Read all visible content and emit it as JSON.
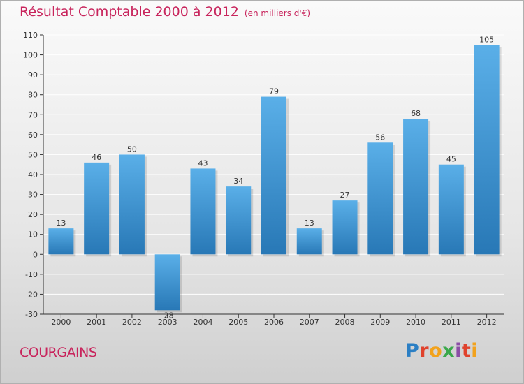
{
  "title": "Résultat Comptable 2000 à 2012",
  "subtitle": "(en milliers d'€)",
  "place": "COURGAINS",
  "brand": {
    "letters": [
      "P",
      "r",
      "o",
      "x",
      "i",
      "t",
      "i"
    ],
    "colors": [
      "#2b7fc4",
      "#e0422c",
      "#f2a21c",
      "#3aa84a",
      "#8b4ea6",
      "#e0422c",
      "#f2a21c"
    ]
  },
  "colors": {
    "bar_top": "#5aafe8",
    "bar_bottom": "#2878b6",
    "grid": "#ffffff",
    "axis": "#333333",
    "title": "#c8245c"
  },
  "chart_data": {
    "type": "bar",
    "title": "Résultat Comptable 2000 à 2012",
    "ylabel": "en milliers d'€",
    "categories": [
      "2000",
      "2001",
      "2002",
      "2003",
      "2004",
      "2005",
      "2006",
      "2007",
      "2008",
      "2009",
      "2010",
      "2011",
      "2012"
    ],
    "values": [
      13,
      46,
      50,
      -28,
      43,
      34,
      79,
      13,
      27,
      56,
      68,
      45,
      105
    ],
    "ylim": [
      -30,
      110
    ],
    "yticks": [
      -30,
      -20,
      -10,
      0,
      10,
      20,
      30,
      40,
      50,
      60,
      70,
      80,
      90,
      100,
      110
    ],
    "grid": true,
    "legend": "none"
  }
}
